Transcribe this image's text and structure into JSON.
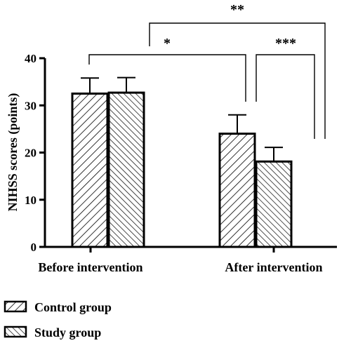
{
  "chart_data": {
    "type": "bar",
    "title": "",
    "xlabel": "",
    "ylabel": "NIHSS scores (points)",
    "ylim": [
      0,
      40
    ],
    "yticks": [
      0,
      10,
      20,
      30,
      40
    ],
    "categories": [
      "Before intervention",
      "After intervention"
    ],
    "series": [
      {
        "name": "Control group",
        "values": [
          32.5,
          24.0
        ],
        "errors": [
          3.3,
          4.0
        ],
        "pattern": "hatch-forward"
      },
      {
        "name": "Study group",
        "values": [
          32.7,
          18.1
        ],
        "errors": [
          3.2,
          3.0
        ],
        "pattern": "hatch-backward"
      }
    ],
    "significance": [
      {
        "label": "*",
        "from": "Before intervention",
        "to": "After intervention: Control group"
      },
      {
        "label": "***",
        "from": "After intervention: Control group",
        "to": "After intervention: Study group"
      },
      {
        "label": "**",
        "from": "Before intervention: Study group",
        "to": "After intervention: Study group"
      }
    ],
    "legend_position": "bottom-left",
    "grid": false
  }
}
